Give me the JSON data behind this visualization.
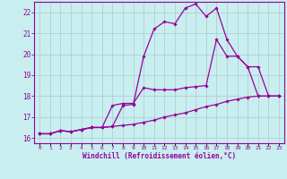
{
  "xlabel": "Windchill (Refroidissement éolien,°C)",
  "background_color": "#c8eef0",
  "grid_color": "#b0c8cc",
  "line_color": "#990099",
  "x_ticks": [
    0,
    1,
    2,
    3,
    4,
    5,
    6,
    7,
    8,
    9,
    10,
    11,
    12,
    13,
    14,
    15,
    16,
    17,
    18,
    19,
    20,
    21,
    22,
    23
  ],
  "ylim": [
    15.75,
    22.5
  ],
  "xlim": [
    -0.5,
    23.5
  ],
  "yticks": [
    16,
    17,
    18,
    19,
    20,
    21,
    22
  ],
  "line1_x": [
    0,
    1,
    2,
    3,
    4,
    5,
    6,
    7,
    8,
    9,
    10,
    11,
    12,
    13,
    14,
    15,
    16,
    17,
    18,
    19,
    20,
    21,
    22,
    23
  ],
  "line1_y": [
    16.2,
    16.2,
    16.35,
    16.3,
    16.4,
    16.5,
    16.5,
    16.55,
    17.55,
    17.6,
    19.9,
    21.2,
    21.55,
    21.45,
    22.2,
    22.4,
    21.8,
    22.2,
    20.7,
    19.9,
    19.4,
    18.0,
    18.0,
    18.0
  ],
  "line2_x": [
    0,
    1,
    2,
    3,
    4,
    5,
    6,
    7,
    8,
    9,
    10,
    11,
    12,
    13,
    14,
    15,
    16,
    17,
    18,
    19,
    20,
    21,
    22,
    23
  ],
  "line2_y": [
    16.2,
    16.2,
    16.35,
    16.3,
    16.4,
    16.5,
    16.5,
    17.55,
    17.65,
    17.65,
    18.4,
    18.3,
    18.3,
    18.3,
    18.4,
    18.45,
    18.5,
    20.7,
    19.9,
    19.9,
    19.4,
    19.4,
    18.0,
    18.0
  ],
  "line3_x": [
    0,
    1,
    2,
    3,
    4,
    5,
    6,
    7,
    8,
    9,
    10,
    11,
    12,
    13,
    14,
    15,
    16,
    17,
    18,
    19,
    20,
    21,
    22,
    23
  ],
  "line3_y": [
    16.2,
    16.2,
    16.35,
    16.3,
    16.4,
    16.5,
    16.5,
    16.55,
    16.6,
    16.65,
    16.75,
    16.85,
    17.0,
    17.1,
    17.2,
    17.35,
    17.5,
    17.6,
    17.75,
    17.85,
    17.95,
    18.0,
    18.0,
    18.0
  ]
}
